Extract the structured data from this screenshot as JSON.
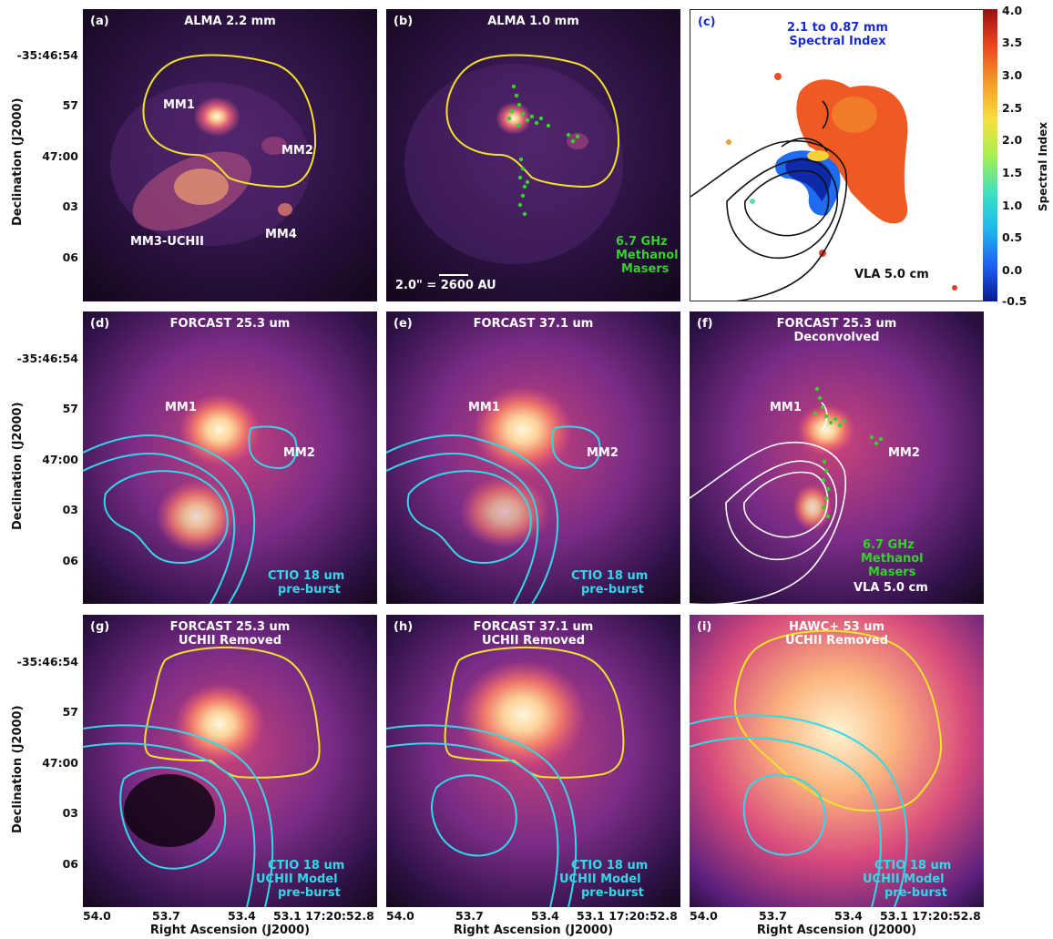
{
  "panels": {
    "a": {
      "label": "(a)",
      "title": "ALMA 2.2 mm",
      "sources": {
        "mm1": "MM1",
        "mm2": "MM2",
        "mm3": "MM3-UCHII",
        "mm4": "MM4"
      }
    },
    "b": {
      "label": "(b)",
      "title": "ALMA 1.0 mm",
      "scale": "2.0\" = 2600 AU",
      "legend": [
        "6.7 GHz",
        "Methanol",
        "Masers"
      ]
    },
    "c": {
      "label": "(c)",
      "title": [
        "2.1 to 0.87 mm",
        "Spectral Index"
      ],
      "legend": "VLA 5.0 cm"
    },
    "d": {
      "label": "(d)",
      "title": "FORCAST 25.3 um",
      "sources": {
        "mm1": "MM1",
        "mm2": "MM2"
      },
      "legend": [
        "CTIO 18 um",
        "pre-burst"
      ]
    },
    "e": {
      "label": "(e)",
      "title": "FORCAST 37.1 um",
      "sources": {
        "mm1": "MM1",
        "mm2": "MM2"
      },
      "legend": [
        "CTIO 18 um",
        "pre-burst"
      ]
    },
    "f": {
      "label": "(f)",
      "title": [
        "FORCAST 25.3 um",
        "Deconvolved"
      ],
      "sources": {
        "mm1": "MM1",
        "mm2": "MM2"
      },
      "legend_green": [
        "6.7 GHz",
        "Methanol",
        "Masers"
      ],
      "legend_white": "VLA 5.0 cm"
    },
    "g": {
      "label": "(g)",
      "title": [
        "FORCAST 25.3 um",
        "UCHII Removed"
      ],
      "legend": [
        "CTIO 18 um",
        "UCHII Model",
        "pre-burst"
      ]
    },
    "h": {
      "label": "(h)",
      "title": [
        "FORCAST 37.1 um",
        "UCHII Removed"
      ],
      "legend": [
        "CTIO 18 um",
        "UCHII Model",
        "pre-burst"
      ]
    },
    "i": {
      "label": "(i)",
      "title": [
        "HAWC+ 53 um",
        "UCHII Removed"
      ],
      "legend": [
        "CTIO 18 um",
        "UCHII Model",
        "pre-burst"
      ]
    }
  },
  "axes": {
    "y_title": "Declination (J2000)",
    "y_ticks": [
      "-35:46:54",
      "57",
      "47:00",
      "03",
      "06"
    ],
    "x_title": "Right Ascension (J2000)",
    "x_ticks": [
      "54.0",
      "53.7",
      "53.4",
      "53.1 17:20:52.8"
    ]
  },
  "colorbar": {
    "title": "Spectral Index",
    "ticks": [
      "4.0",
      "3.5",
      "3.0",
      "2.5",
      "2.0",
      "1.5",
      "1.0",
      "0.5",
      "0.0",
      "-0.5"
    ]
  },
  "colors": {
    "cyan_contour": "#33d8e8",
    "yellow_contour": "#f2e22a",
    "maser_green": "#35d12a",
    "title_blue": "#1a2bd6"
  }
}
